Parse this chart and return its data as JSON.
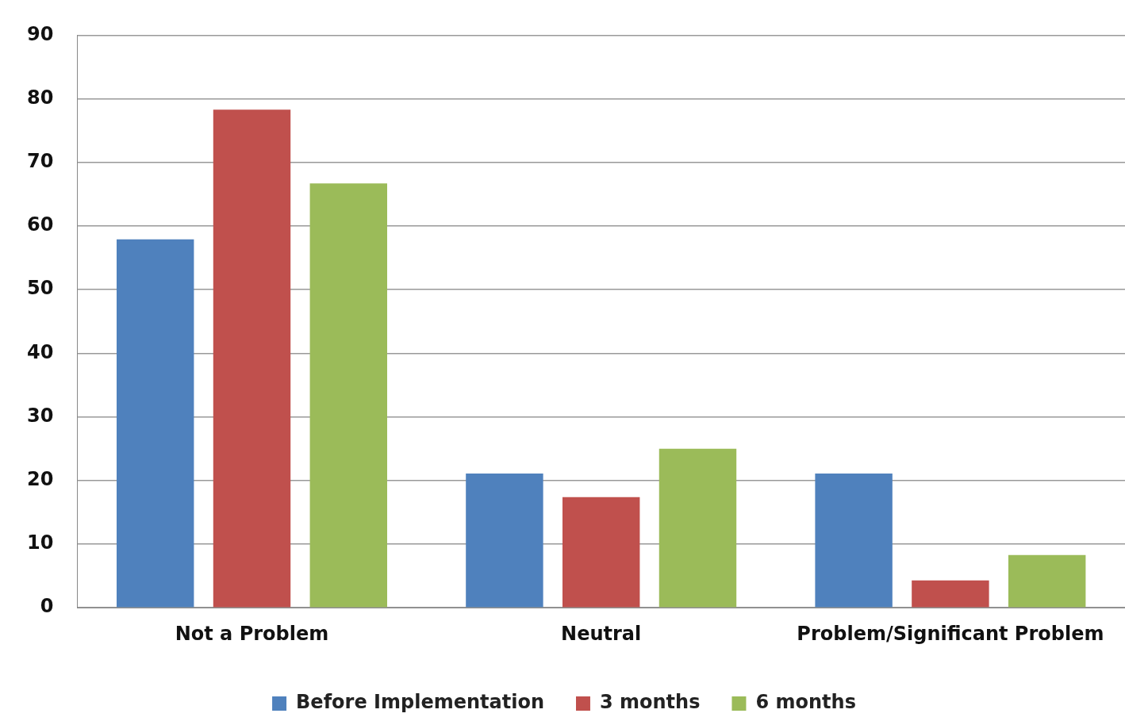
{
  "chart_data": {
    "type": "bar",
    "categories": [
      "Not a Problem",
      "Neutral",
      "Problem/Significant Problem"
    ],
    "series": [
      {
        "name": "Before Implementation",
        "color": "#4f81bd",
        "values": [
          57.9,
          21.1,
          21.1
        ]
      },
      {
        "name": "3 months",
        "color": "#c0504d",
        "values": [
          78.3,
          17.4,
          4.3
        ]
      },
      {
        "name": "6 months",
        "color": "#9bbb59",
        "values": [
          66.7,
          25,
          8.3
        ]
      }
    ],
    "ylim": [
      0,
      90
    ],
    "yticks": [
      0,
      10,
      20,
      30,
      40,
      50,
      60,
      70,
      80,
      90
    ],
    "grid": "y",
    "legend": "bottom"
  }
}
